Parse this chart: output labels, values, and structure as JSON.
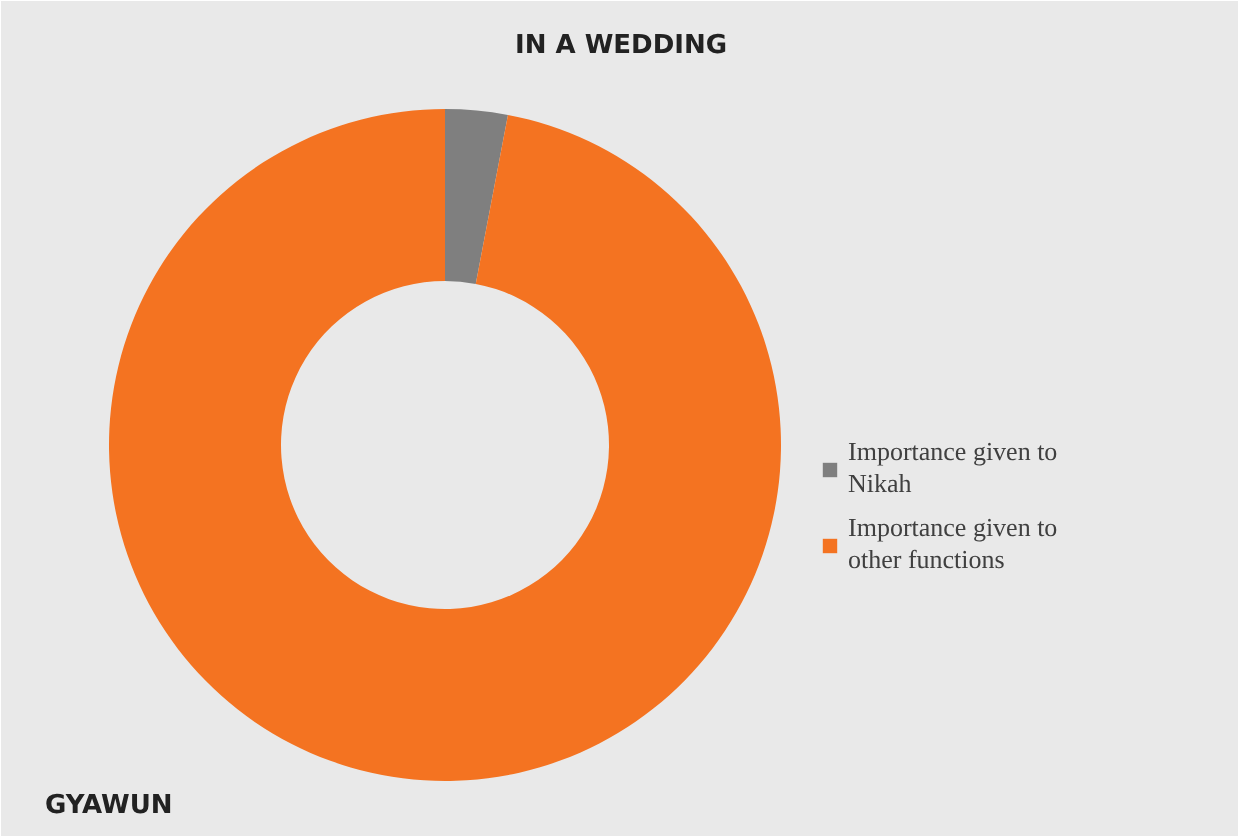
{
  "chart_data": {
    "type": "donut",
    "title": "IN A WEDDING",
    "categories": [
      "Importance given to Nikah",
      "Importance given to other functions"
    ],
    "values": [
      3,
      97
    ],
    "colors": [
      "#7f7f7f",
      "#f47321"
    ],
    "legend": "right",
    "annotations": [
      "GYAWUN"
    ]
  }
}
